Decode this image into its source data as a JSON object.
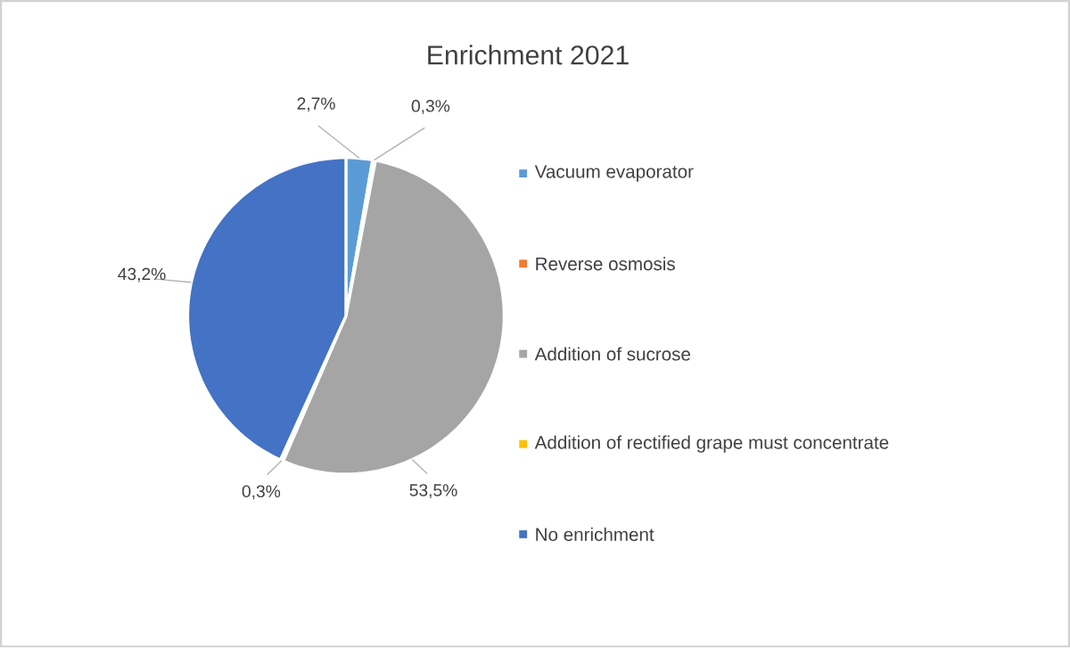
{
  "chart_data": {
    "type": "pie",
    "title": "Enrichment 2021",
    "categories": [
      "Vacuum evaporator",
      "Reverse osmosis",
      "Addition of sucrose",
      "Addition of rectified grape must concentrate",
      "No enrichment"
    ],
    "values": [
      2.7,
      0.3,
      53.5,
      0.3,
      43.2
    ],
    "value_labels": [
      "2,7%",
      "0,3%",
      "53,5%",
      "0,3%",
      "43,2%"
    ],
    "colors": [
      "#5b9bd5",
      "#ed7d31",
      "#a5a5a5",
      "#ffc000",
      "#4472c4"
    ],
    "legend": "right"
  }
}
